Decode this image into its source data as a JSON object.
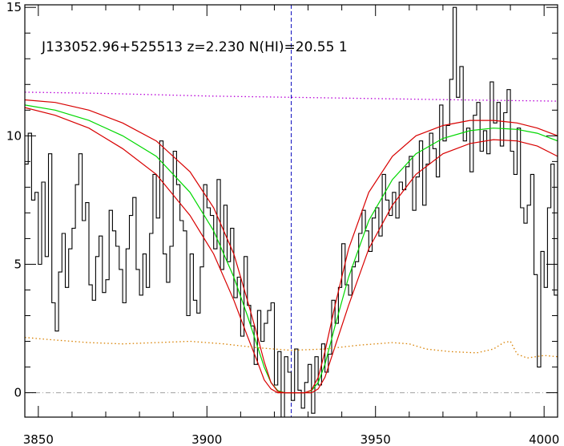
{
  "chart_data": {
    "type": "line",
    "title": "J133052.96+525513 z=2.230 N(HI)=20.55 1",
    "xlabel": "",
    "ylabel": "",
    "xlim": [
      3846,
      4004
    ],
    "ylim": [
      -0.95,
      15.1
    ],
    "x_ticks": [
      3850,
      3900,
      3950,
      4000
    ],
    "x_tick_labels": [
      "3850",
      "3900",
      "3950",
      "4000"
    ],
    "y_ticks": [
      0,
      5,
      10,
      15
    ],
    "y_tick_labels": [
      "0",
      "5",
      "10",
      "15"
    ],
    "grid": false,
    "legend": "none",
    "absorber_center": 3925,
    "colors": {
      "flux": "#000000",
      "model_fit": "#00d800",
      "model_bounds": "#d80000",
      "continuum": "#b800d8",
      "error": "#d88000",
      "center_marker": "#1010c0",
      "zero_line": "#a0a0a0"
    },
    "series": [
      {
        "style": "histogram",
        "color": "#000000",
        "x": [
          3846,
          3847,
          3848,
          3849,
          3850,
          3851,
          3852,
          3853,
          3854,
          3855,
          3856,
          3857,
          3858,
          3859,
          3860,
          3861,
          3862,
          3863,
          3864,
          3865,
          3866,
          3867,
          3868,
          3869,
          3870,
          3871,
          3872,
          3873,
          3874,
          3875,
          3876,
          3877,
          3878,
          3879,
          3880,
          3881,
          3882,
          3883,
          3884,
          3885,
          3886,
          3887,
          3888,
          3889,
          3890,
          3891,
          3892,
          3893,
          3894,
          3895,
          3896,
          3897,
          3898,
          3899,
          3900,
          3901,
          3902,
          3903,
          3904,
          3905,
          3906,
          3907,
          3908,
          3909,
          3910,
          3911,
          3912,
          3913,
          3914,
          3915,
          3916,
          3917,
          3918,
          3919,
          3920,
          3921,
          3922,
          3923,
          3924,
          3925,
          3926,
          3927,
          3928,
          3929,
          3930,
          3931,
          3932,
          3933,
          3934,
          3935,
          3936,
          3937,
          3938,
          3939,
          3940,
          3941,
          3942,
          3943,
          3944,
          3945,
          3946,
          3947,
          3948,
          3949,
          3950,
          3951,
          3952,
          3953,
          3954,
          3955,
          3956,
          3957,
          3958,
          3959,
          3960,
          3961,
          3962,
          3963,
          3964,
          3965,
          3966,
          3967,
          3968,
          3969,
          3970,
          3971,
          3972,
          3973,
          3974,
          3975,
          3976,
          3977,
          3978,
          3979,
          3980,
          3981,
          3982,
          3983,
          3984,
          3985,
          3986,
          3987,
          3988,
          3989,
          3990,
          3991,
          3992,
          3993,
          3994,
          3995,
          3996,
          3997,
          3998,
          3999,
          4000,
          4001,
          4002,
          4003
        ],
        "y": [
          8.9,
          10.1,
          7.5,
          7.8,
          5.0,
          8.2,
          5.3,
          9.3,
          3.5,
          2.4,
          4.7,
          6.2,
          4.1,
          5.6,
          6.4,
          8.1,
          9.3,
          6.7,
          7.4,
          4.2,
          3.6,
          5.3,
          6.1,
          3.9,
          4.4,
          7.1,
          6.3,
          5.7,
          4.8,
          3.5,
          5.6,
          6.9,
          7.6,
          4.8,
          3.8,
          5.4,
          4.1,
          6.2,
          8.5,
          6.8,
          9.8,
          5.4,
          4.3,
          5.7,
          9.4,
          8.1,
          6.7,
          6.3,
          3.0,
          5.4,
          3.6,
          3.1,
          4.9,
          8.1,
          7.2,
          6.9,
          5.6,
          8.3,
          4.8,
          7.3,
          5.1,
          6.4,
          3.7,
          4.5,
          2.2,
          5.3,
          3.4,
          2.6,
          1.1,
          3.2,
          2.0,
          2.7,
          3.2,
          3.5,
          0.3,
          1.6,
          -1.0,
          1.4,
          0.8,
          -0.3,
          1.7,
          0.1,
          -0.6,
          0.4,
          1.1,
          -0.8,
          1.4,
          0.3,
          1.9,
          0.8,
          1.5,
          3.6,
          2.7,
          4.1,
          5.8,
          4.2,
          3.8,
          4.9,
          5.1,
          6.2,
          7.1,
          6.3,
          5.5,
          6.8,
          7.2,
          6.1,
          8.5,
          7.5,
          6.9,
          7.8,
          6.8,
          8.2,
          7.9,
          8.8,
          9.2,
          7.1,
          8.4,
          9.8,
          7.3,
          8.9,
          10.1,
          9.5,
          8.4,
          11.2,
          9.8,
          10.4,
          12.2,
          15.0,
          11.5,
          12.7,
          9.8,
          10.3,
          8.6,
          10.8,
          11.3,
          9.4,
          10.2,
          9.3,
          12.1,
          10.5,
          11.3,
          9.6,
          10.9,
          11.8,
          9.4,
          8.5,
          10.3,
          7.2,
          6.6,
          7.3,
          8.5,
          4.6,
          1.0,
          5.5,
          4.1,
          7.2,
          8.9,
          3.8
        ]
      },
      {
        "style": "smooth",
        "color": "#00d800",
        "x": [
          3846,
          3855,
          3865,
          3875,
          3885,
          3895,
          3902,
          3908,
          3912,
          3915,
          3917,
          3919,
          3921,
          3923,
          3925,
          3927,
          3929,
          3931,
          3933,
          3935,
          3938,
          3942,
          3948,
          3955,
          3962,
          3970,
          3978,
          3985,
          3992,
          3998,
          4004
        ],
        "y": [
          11.2,
          11.0,
          10.6,
          10.0,
          9.2,
          7.8,
          6.3,
          4.5,
          3.0,
          1.8,
          1.0,
          0.4,
          0.08,
          0.0,
          0.0,
          0.0,
          0.0,
          0.08,
          0.4,
          1.1,
          2.6,
          4.5,
          6.7,
          8.3,
          9.3,
          9.9,
          10.2,
          10.3,
          10.25,
          10.1,
          9.8
        ]
      },
      {
        "style": "smooth",
        "color": "#d80000",
        "x": [
          3846,
          3855,
          3865,
          3875,
          3885,
          3895,
          3902,
          3908,
          3912,
          3915,
          3917,
          3919,
          3921,
          3923,
          3925,
          3927,
          3929,
          3931,
          3933,
          3935,
          3938,
          3942,
          3948,
          3955,
          3962,
          3970,
          3978,
          3985,
          3992,
          3998,
          4004
        ],
        "y": [
          11.4,
          11.3,
          11.0,
          10.5,
          9.8,
          8.6,
          7.2,
          5.4,
          3.6,
          2.2,
          1.2,
          0.4,
          0.05,
          0.0,
          0.0,
          0.0,
          0.0,
          0.1,
          0.6,
          1.6,
          3.4,
          5.6,
          7.8,
          9.2,
          10.0,
          10.4,
          10.6,
          10.6,
          10.5,
          10.3,
          10.0
        ]
      },
      {
        "style": "smooth",
        "color": "#d80000",
        "x": [
          3846,
          3855,
          3865,
          3875,
          3885,
          3895,
          3902,
          3908,
          3912,
          3915,
          3917,
          3919,
          3921,
          3923,
          3925,
          3927,
          3929,
          3931,
          3933,
          3935,
          3938,
          3942,
          3948,
          3955,
          3962,
          3970,
          3978,
          3985,
          3992,
          3998,
          4004
        ],
        "y": [
          11.1,
          10.8,
          10.3,
          9.5,
          8.5,
          6.9,
          5.4,
          3.6,
          2.2,
          1.2,
          0.5,
          0.15,
          0.0,
          0.0,
          0.0,
          0.0,
          0.0,
          0.0,
          0.15,
          0.6,
          1.8,
          3.4,
          5.6,
          7.3,
          8.5,
          9.3,
          9.7,
          9.85,
          9.8,
          9.6,
          9.2
        ]
      },
      {
        "style": "dotted",
        "color": "#b800d8",
        "x": [
          3846,
          3870,
          3900,
          3925,
          3950,
          3975,
          4004
        ],
        "y": [
          11.7,
          11.65,
          11.55,
          11.5,
          11.45,
          11.4,
          11.35
        ]
      },
      {
        "style": "dotted",
        "color": "#d88000",
        "x": [
          3846,
          3855,
          3865,
          3875,
          3885,
          3895,
          3905,
          3915,
          3925,
          3935,
          3945,
          3955,
          3960,
          3965,
          3972,
          3980,
          3985,
          3988,
          3990,
          3992,
          3995,
          4000,
          4004
        ],
        "y": [
          2.15,
          2.05,
          1.95,
          1.9,
          1.95,
          2.0,
          1.9,
          1.75,
          1.65,
          1.7,
          1.85,
          1.95,
          1.9,
          1.7,
          1.6,
          1.55,
          1.7,
          1.95,
          2.0,
          1.5,
          1.35,
          1.45,
          1.4
        ]
      }
    ]
  }
}
